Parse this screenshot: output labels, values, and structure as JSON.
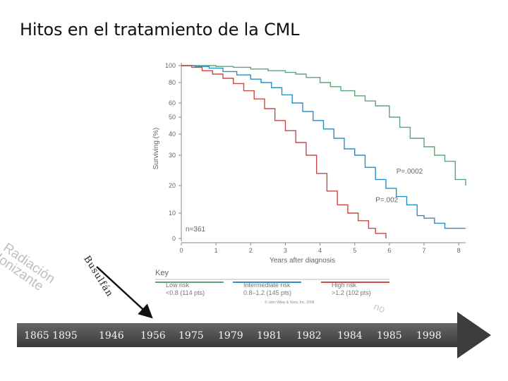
{
  "slide": {
    "title": "Hitos en el tratamiento de la CML"
  },
  "chart_data": {
    "type": "line",
    "title": "",
    "xlabel": "Years after diagnosis",
    "ylabel": "Surviving (%)",
    "xlim": [
      0,
      8.2
    ],
    "y_ticks": [
      0,
      10,
      20,
      30,
      40,
      50,
      60,
      80,
      100
    ],
    "x_ticks": [
      0,
      1,
      2,
      3,
      4,
      5,
      6,
      7,
      8
    ],
    "n_label": "n=361",
    "annotations": [
      {
        "text": "P=.0002",
        "x": 6.2,
        "y": 24
      },
      {
        "text": "P=.002",
        "x": 5.6,
        "y": 14
      }
    ],
    "series": [
      {
        "name": "Low risk",
        "sublabel": "<0.8 (114 pts)",
        "color": "#5fa37a",
        "points": [
          [
            0,
            100
          ],
          [
            0.7,
            100
          ],
          [
            1,
            99
          ],
          [
            1.5,
            98
          ],
          [
            2,
            96
          ],
          [
            2.5,
            94
          ],
          [
            3,
            92
          ],
          [
            3.3,
            90
          ],
          [
            3.6,
            86
          ],
          [
            4,
            80
          ],
          [
            4.3,
            76
          ],
          [
            4.6,
            72
          ],
          [
            5,
            67
          ],
          [
            5.3,
            62
          ],
          [
            5.6,
            58
          ],
          [
            6,
            50
          ],
          [
            6.3,
            44
          ],
          [
            6.6,
            38
          ],
          [
            7,
            34
          ],
          [
            7.3,
            30
          ],
          [
            7.6,
            28
          ],
          [
            7.9,
            22
          ],
          [
            8.2,
            20
          ]
        ]
      },
      {
        "name": "Intermediate risk",
        "sublabel": "0.8–1.2 (145 pts)",
        "color": "#2c8fc1",
        "points": [
          [
            0,
            100
          ],
          [
            0.4,
            99
          ],
          [
            0.8,
            97
          ],
          [
            1.2,
            93
          ],
          [
            1.6,
            89
          ],
          [
            2,
            84
          ],
          [
            2.3,
            80
          ],
          [
            2.6,
            75
          ],
          [
            2.9,
            68
          ],
          [
            3.2,
            60
          ],
          [
            3.5,
            54
          ],
          [
            3.8,
            48
          ],
          [
            4.1,
            43
          ],
          [
            4.4,
            38
          ],
          [
            4.7,
            33
          ],
          [
            5,
            30
          ],
          [
            5.3,
            26
          ],
          [
            5.6,
            22
          ],
          [
            5.9,
            19
          ],
          [
            6.2,
            16
          ],
          [
            6.5,
            13
          ],
          [
            6.8,
            9
          ],
          [
            7,
            8
          ],
          [
            7.3,
            6
          ],
          [
            7.6,
            4
          ],
          [
            8.2,
            4
          ]
        ]
      },
      {
        "name": "High risk",
        "sublabel": ">1.2 (102 pts)",
        "color": "#c74a44",
        "points": [
          [
            0,
            100
          ],
          [
            0.3,
            98
          ],
          [
            0.6,
            94
          ],
          [
            0.9,
            90
          ],
          [
            1.2,
            85
          ],
          [
            1.5,
            79
          ],
          [
            1.8,
            72
          ],
          [
            2.1,
            64
          ],
          [
            2.4,
            56
          ],
          [
            2.7,
            48
          ],
          [
            3,
            42
          ],
          [
            3.3,
            36
          ],
          [
            3.6,
            30
          ],
          [
            3.9,
            24
          ],
          [
            4.2,
            18
          ],
          [
            4.5,
            13
          ],
          [
            4.8,
            10
          ],
          [
            5.1,
            7
          ],
          [
            5.4,
            4
          ],
          [
            5.6,
            2
          ],
          [
            5.9,
            0
          ]
        ]
      }
    ],
    "legend": {
      "title": "Key",
      "placement": "bottom"
    },
    "copyright": "© John Wiley & Sons, Inc. 2008"
  },
  "overlays": {
    "radiacion": "Radiación Ionizante",
    "busulfan": "Busulfán",
    "faded_tail": "no"
  },
  "timeline": {
    "color": "#4a4a4a",
    "years": [
      "1865 1895",
      "1946",
      "1956",
      "1975",
      "1979",
      "1981",
      "1982",
      "1984",
      "1985",
      "1998"
    ]
  }
}
